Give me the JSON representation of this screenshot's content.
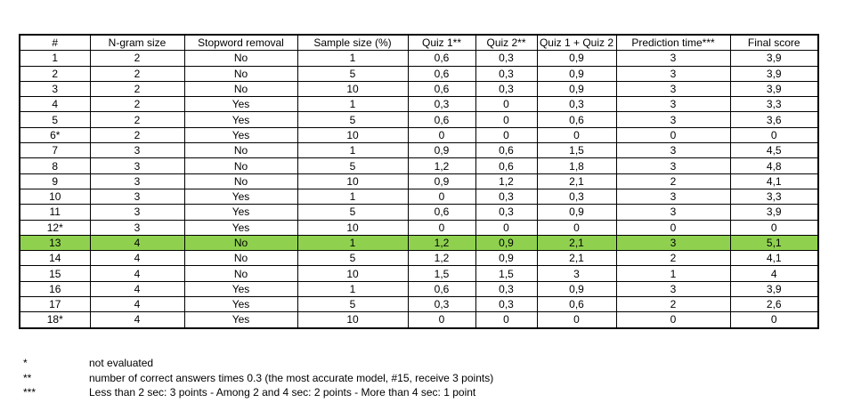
{
  "table": {
    "columns": [
      "#",
      "N-gram size",
      "Stopword removal",
      "Sample size (%)",
      "Quiz 1**",
      "Quiz 2**",
      "Quiz 1 + Quiz 2",
      "Prediction time***",
      "Final score"
    ],
    "rows": [
      [
        "1",
        "2",
        "No",
        "1",
        "0,6",
        "0,3",
        "0,9",
        "3",
        "3,9"
      ],
      [
        "2",
        "2",
        "No",
        "5",
        "0,6",
        "0,3",
        "0,9",
        "3",
        "3,9"
      ],
      [
        "3",
        "2",
        "No",
        "10",
        "0,6",
        "0,3",
        "0,9",
        "3",
        "3,9"
      ],
      [
        "4",
        "2",
        "Yes",
        "1",
        "0,3",
        "0",
        "0,3",
        "3",
        "3,3"
      ],
      [
        "5",
        "2",
        "Yes",
        "5",
        "0,6",
        "0",
        "0,6",
        "3",
        "3,6"
      ],
      [
        "6*",
        "2",
        "Yes",
        "10",
        "0",
        "0",
        "0",
        "0",
        "0"
      ],
      [
        "7",
        "3",
        "No",
        "1",
        "0,9",
        "0,6",
        "1,5",
        "3",
        "4,5"
      ],
      [
        "8",
        "3",
        "No",
        "5",
        "1,2",
        "0,6",
        "1,8",
        "3",
        "4,8"
      ],
      [
        "9",
        "3",
        "No",
        "10",
        "0,9",
        "1,2",
        "2,1",
        "2",
        "4,1"
      ],
      [
        "10",
        "3",
        "Yes",
        "1",
        "0",
        "0,3",
        "0,3",
        "3",
        "3,3"
      ],
      [
        "11",
        "3",
        "Yes",
        "5",
        "0,6",
        "0,3",
        "0,9",
        "3",
        "3,9"
      ],
      [
        "12*",
        "3",
        "Yes",
        "10",
        "0",
        "0",
        "0",
        "0",
        "0"
      ],
      [
        "13",
        "4",
        "No",
        "1",
        "1,2",
        "0,9",
        "2,1",
        "3",
        "5,1"
      ],
      [
        "14",
        "4",
        "No",
        "5",
        "1,2",
        "0,9",
        "2,1",
        "2",
        "4,1"
      ],
      [
        "15",
        "4",
        "No",
        "10",
        "1,5",
        "1,5",
        "3",
        "1",
        "4"
      ],
      [
        "16",
        "4",
        "Yes",
        "1",
        "0,6",
        "0,3",
        "0,9",
        "3",
        "3,9"
      ],
      [
        "17",
        "4",
        "Yes",
        "5",
        "0,3",
        "0,3",
        "0,6",
        "2",
        "2,6"
      ],
      [
        "18*",
        "4",
        "Yes",
        "10",
        "0",
        "0",
        "0",
        "0",
        "0"
      ]
    ],
    "highlight_row": "13",
    "highlight_color": "#8fd14f"
  },
  "footnotes": [
    {
      "marker": "*",
      "text": "not evaluated"
    },
    {
      "marker": "**",
      "text": "number of correct answers times 0.3 (the most accurate model, #15, receive 3 points)"
    },
    {
      "marker": "***",
      "text": "Less than 2 sec: 3 points - Among 2 and 4 sec: 2 points - More than 4 sec: 1 point"
    }
  ]
}
